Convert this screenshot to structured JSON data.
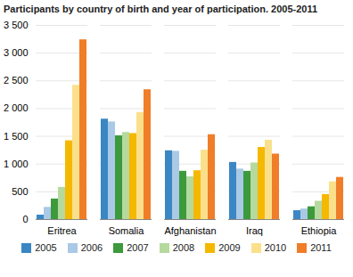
{
  "chart_data": {
    "type": "bar",
    "title": "Participants by country of birth and year of participation. 2005-2011",
    "categories": [
      "Eritrea",
      "Somalia",
      "Afghanistan",
      "Iraq",
      "Ethiopia"
    ],
    "series": [
      {
        "name": "2005",
        "color": "#3a87c4",
        "values": [
          80,
          1810,
          1240,
          1030,
          160
        ]
      },
      {
        "name": "2006",
        "color": "#a9c9e6",
        "values": [
          220,
          1760,
          1230,
          910,
          190
        ]
      },
      {
        "name": "2007",
        "color": "#3c9a3c",
        "values": [
          370,
          1510,
          870,
          870,
          230
        ]
      },
      {
        "name": "2008",
        "color": "#b6d99e",
        "values": [
          580,
          1570,
          770,
          1020,
          330
        ]
      },
      {
        "name": "2009",
        "color": "#f5b800",
        "values": [
          1420,
          1550,
          880,
          1300,
          450
        ]
      },
      {
        "name": "2010",
        "color": "#fbe08c",
        "values": [
          2420,
          1930,
          1250,
          1430,
          680
        ]
      },
      {
        "name": "2011",
        "color": "#f07d28",
        "values": [
          3240,
          2340,
          1530,
          1180,
          760
        ]
      }
    ],
    "ylim": [
      0,
      3500
    ],
    "yticks": [
      0,
      500,
      {
        "value": 1000,
        "label": "1 000"
      },
      {
        "value": 1500,
        "label": "1 500"
      },
      {
        "value": 2000,
        "label": "2 000"
      },
      {
        "value": 2500,
        "label": "2 500"
      },
      {
        "value": 3000,
        "label": "3 000"
      },
      {
        "value": 3500,
        "label": "3 500"
      }
    ],
    "grid": true,
    "legend": "bottom"
  }
}
